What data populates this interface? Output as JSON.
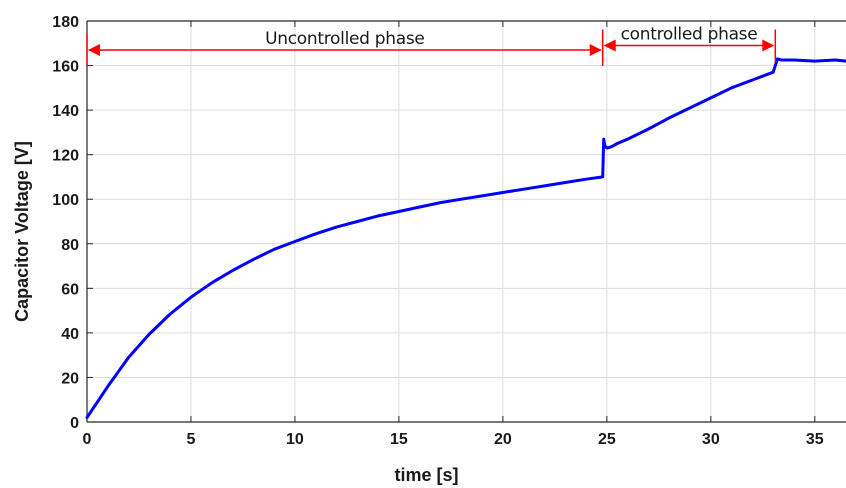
{
  "chart_data": {
    "type": "line",
    "title": "",
    "xlabel": "time [s]",
    "ylabel": "Capacitor Voltage [V]",
    "xlim": [
      0,
      36.5
    ],
    "ylim": [
      0,
      180
    ],
    "x_ticks": [
      0,
      5,
      10,
      15,
      20,
      25,
      30,
      35
    ],
    "y_ticks": [
      0,
      20,
      40,
      60,
      80,
      100,
      120,
      140,
      160,
      180
    ],
    "grid": true,
    "legend": "none",
    "series": [
      {
        "color": "#0000ff",
        "x": [
          0,
          1,
          2,
          3,
          4,
          5,
          6,
          7,
          8,
          9,
          10,
          11,
          12,
          13,
          14,
          15,
          16,
          17,
          18,
          19,
          20,
          21,
          22,
          23,
          24,
          24.8,
          24.85,
          24.9,
          25.0,
          25.2,
          25.5,
          26,
          27,
          28,
          29,
          30,
          31,
          32,
          33.0,
          33.2,
          33.4,
          34,
          35,
          36,
          36.5
        ],
        "y": [
          2,
          16,
          29,
          39.5,
          48.5,
          56,
          62.5,
          68,
          73,
          77.5,
          81,
          84.5,
          87.5,
          90,
          92.5,
          94.5,
          96.5,
          98.5,
          100,
          101.5,
          103,
          104.5,
          106,
          107.5,
          109,
          110,
          127,
          124,
          123,
          123.5,
          125,
          127,
          131.5,
          136.5,
          141,
          145.5,
          150,
          153.5,
          157,
          163,
          162.5,
          162.5,
          162,
          162.5,
          162
        ]
      }
    ],
    "annotations": [
      {
        "label": "Uncontrolled phase",
        "x_start": 0,
        "x_end": 24.8,
        "y": 167,
        "color": "#ff0000"
      },
      {
        "label": "controlled phase",
        "x_start": 24.8,
        "x_end": 33.1,
        "y": 169,
        "color": "#ff0000"
      }
    ]
  }
}
